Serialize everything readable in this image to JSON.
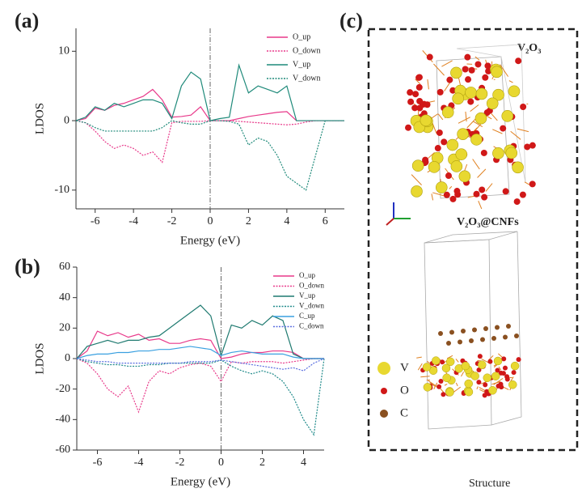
{
  "chart_data": [
    {
      "type": "line",
      "panel_label": "(a)",
      "xlabel": "Energy (eV)",
      "ylabel": "LDOS",
      "x": [
        -7,
        -6.5,
        -6,
        -5.5,
        -5,
        -4.5,
        -4,
        -3.5,
        -3,
        -2.5,
        -2,
        -1.5,
        -1,
        -0.5,
        0,
        0.5,
        1,
        1.5,
        2,
        2.5,
        3,
        3.5,
        4,
        4.5,
        5,
        5.5,
        6,
        6.5,
        7
      ],
      "series": [
        {
          "name": "O_up",
          "color": "#e8398a",
          "dashed": false,
          "values": [
            0,
            0.3,
            1.8,
            1.5,
            2.2,
            2.5,
            3,
            3.5,
            4.5,
            3,
            0.5,
            0.6,
            0.8,
            2,
            0,
            0,
            0,
            0.3,
            0.6,
            0.8,
            1,
            1.2,
            1.3,
            0,
            0,
            0,
            0,
            0,
            0
          ]
        },
        {
          "name": "O_down",
          "color": "#e8398a",
          "dashed": true,
          "values": [
            0,
            -0.3,
            -1.5,
            -3,
            -4,
            -3.5,
            -4,
            -5,
            -4.5,
            -6,
            -0.3,
            -0.1,
            -0.1,
            -0.1,
            0,
            0,
            0,
            -0.1,
            -0.2,
            -0.3,
            -0.4,
            -0.5,
            -0.6,
            -0.5,
            -0.2,
            0,
            0,
            0,
            0
          ]
        },
        {
          "name": "V_up",
          "color": "#1f8a7a",
          "dashed": false,
          "values": [
            0,
            0.5,
            2,
            1.5,
            2.5,
            2,
            2.5,
            3,
            3,
            2.5,
            0.3,
            5,
            7,
            6,
            0,
            0.3,
            0.5,
            8,
            4,
            5,
            4.5,
            4,
            5,
            0,
            0,
            0,
            0,
            0,
            0
          ]
        },
        {
          "name": "V_down",
          "color": "#1f8a7a",
          "dashed": true,
          "values": [
            0,
            -0.3,
            -1,
            -1.5,
            -1.5,
            -1.5,
            -1.5,
            -1.5,
            -1.5,
            -1,
            0,
            -0.3,
            -0.5,
            -0.5,
            0,
            0,
            -0.1,
            -0.5,
            -3.5,
            -2.5,
            -3,
            -5,
            -8,
            -9,
            -10,
            -5,
            0,
            0,
            0
          ]
        }
      ],
      "xlim": [
        -7,
        7
      ],
      "ylim": [
        -12.7,
        13.3
      ],
      "xticks": [
        -6,
        -4,
        -2,
        0,
        2,
        4,
        6
      ],
      "yticks": [
        -10,
        0,
        10
      ],
      "vline": 0,
      "legend": "upper right"
    },
    {
      "type": "line",
      "panel_label": "(b)",
      "xlabel": "Energy (eV)",
      "ylabel": "LDOS",
      "x": [
        -7,
        -6.5,
        -6,
        -5.5,
        -5,
        -4.5,
        -4,
        -3.5,
        -3,
        -2.5,
        -2,
        -1.5,
        -1,
        -0.5,
        0,
        0.5,
        1,
        1.5,
        2,
        2.5,
        3,
        3.5,
        4,
        4.5,
        5
      ],
      "series": [
        {
          "name": "O_up",
          "color": "#e8398a",
          "dashed": false,
          "values": [
            0,
            5,
            18,
            15,
            17,
            14,
            16,
            12,
            13,
            10,
            10,
            12,
            13,
            12,
            0,
            1,
            3,
            4,
            4,
            5,
            5,
            4,
            0,
            0,
            0
          ]
        },
        {
          "name": "O_down",
          "color": "#e8398a",
          "dashed": true,
          "values": [
            0,
            -3,
            -10,
            -20,
            -25,
            -18,
            -35,
            -15,
            -8,
            -10,
            -6,
            -4,
            -3,
            -5,
            -15,
            -2,
            -3,
            -2,
            -2,
            -2,
            -3,
            -2,
            -1,
            0,
            0
          ]
        },
        {
          "name": "V_up",
          "color": "#1f7a70",
          "dashed": false,
          "values": [
            0,
            8,
            10,
            12,
            10,
            12,
            12,
            14,
            15,
            20,
            25,
            30,
            35,
            28,
            2,
            22,
            20,
            25,
            22,
            28,
            25,
            3,
            0,
            0,
            0
          ]
        },
        {
          "name": "V_down",
          "color": "#1f8a8a",
          "dashed": true,
          "values": [
            0,
            -2,
            -3,
            -4,
            -4,
            -5,
            -5,
            -4,
            -4,
            -3,
            -3,
            -3,
            -3,
            -3,
            -1,
            -5,
            -8,
            -10,
            -8,
            -10,
            -15,
            -25,
            -40,
            -50,
            0
          ]
        },
        {
          "name": "C_up",
          "color": "#3aa0e0",
          "dashed": false,
          "values": [
            0,
            2,
            3,
            3,
            4,
            4,
            5,
            5,
            6,
            6,
            7,
            8,
            7,
            6,
            2,
            4,
            5,
            4,
            3,
            3,
            3,
            1,
            0,
            0,
            0
          ]
        },
        {
          "name": "C_down",
          "color": "#5a6ee0",
          "dashed": true,
          "values": [
            0,
            -1,
            -2,
            -2,
            -3,
            -3,
            -3,
            -3,
            -3,
            -3,
            -3,
            -2,
            -2,
            -2,
            -1,
            -2,
            -3,
            -4,
            -5,
            -6,
            -7,
            -6,
            -8,
            -3,
            0
          ]
        }
      ],
      "xlim": [
        -7,
        5
      ],
      "ylim": [
        -60,
        60
      ],
      "xticks": [
        -6,
        -4,
        -2,
        0,
        2,
        4
      ],
      "yticks": [
        -60,
        -40,
        -20,
        0,
        20,
        40,
        60
      ],
      "vline": 0,
      "legend": "upper right"
    }
  ],
  "panel_c": {
    "label": "(c)",
    "top_title": "V₂O₃",
    "bottom_title": "V₂O₃@CNFs",
    "legend": [
      "V",
      "O",
      "C"
    ],
    "caption": "Structure"
  }
}
